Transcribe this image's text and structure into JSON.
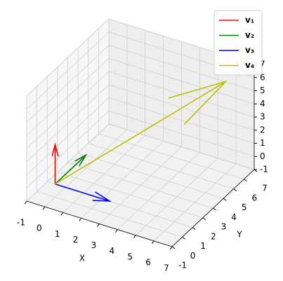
{
  "chart_data": {
    "type": "quiver3d",
    "origin": [
      0,
      0,
      0
    ],
    "series": [
      {
        "name": "v₁",
        "color": "#ff0000",
        "values": [
          0,
          0,
          3
        ]
      },
      {
        "name": "v₂",
        "color": "#008000",
        "values": [
          0,
          3,
          0
        ]
      },
      {
        "name": "v₃",
        "color": "#0000ff",
        "values": [
          3,
          0,
          0
        ]
      },
      {
        "name": "v₄",
        "color": "#bfbf00",
        "values": [
          6,
          6,
          6
        ]
      }
    ],
    "xlabel": "X",
    "ylabel": "Y",
    "xlim": [
      -1,
      7
    ],
    "ylim": [
      -1,
      7
    ],
    "zlim": [
      -1,
      7
    ],
    "xticks": [
      -1,
      0,
      1,
      2,
      3,
      4,
      5,
      6,
      7
    ],
    "yticks": [
      -1,
      0,
      1,
      2,
      3,
      4,
      5,
      6,
      7
    ],
    "zticks": [
      -1,
      0,
      1,
      2,
      3,
      4,
      5,
      6,
      7
    ],
    "grid": true,
    "legend": "upper right"
  }
}
